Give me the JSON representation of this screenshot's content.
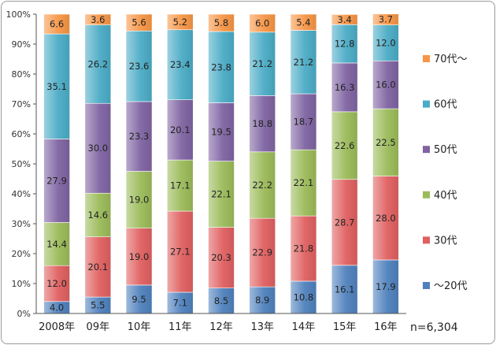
{
  "chart_data": {
    "type": "bar",
    "stacked": true,
    "percent": true,
    "categories": [
      "2008年",
      "09年",
      "10年",
      "11年",
      "12年",
      "13年",
      "14年",
      "15年",
      "16年"
    ],
    "series": [
      {
        "name": "～20代",
        "color": "#4f81bd",
        "values": [
          4.0,
          5.5,
          9.5,
          7.1,
          8.5,
          8.9,
          10.8,
          16.1,
          17.9
        ]
      },
      {
        "name": "30代",
        "color": "#e06060",
        "values": [
          12.0,
          20.1,
          19.0,
          27.1,
          20.3,
          22.9,
          21.8,
          28.7,
          28.0
        ]
      },
      {
        "name": "40代",
        "color": "#9bbb59",
        "values": [
          14.4,
          14.6,
          19.0,
          17.1,
          22.1,
          22.2,
          22.1,
          22.6,
          22.5
        ]
      },
      {
        "name": "50代",
        "color": "#8064a2",
        "values": [
          27.9,
          30.0,
          23.3,
          20.1,
          19.5,
          18.8,
          18.7,
          16.3,
          16.0
        ]
      },
      {
        "name": "60代",
        "color": "#4bacc6",
        "values": [
          35.1,
          26.2,
          23.6,
          23.4,
          23.8,
          21.2,
          21.2,
          12.8,
          12.0
        ]
      },
      {
        "name": "70代～",
        "color": "#f79646",
        "values": [
          6.6,
          3.6,
          5.6,
          5.2,
          5.8,
          6.0,
          5.4,
          3.4,
          3.7
        ]
      }
    ],
    "yticks": [
      "0%",
      "10%",
      "20%",
      "30%",
      "40%",
      "50%",
      "60%",
      "70%",
      "80%",
      "90%",
      "100%"
    ],
    "ylim": [
      0,
      100
    ],
    "grid": false,
    "legend": "right",
    "note": "n=6,304"
  }
}
